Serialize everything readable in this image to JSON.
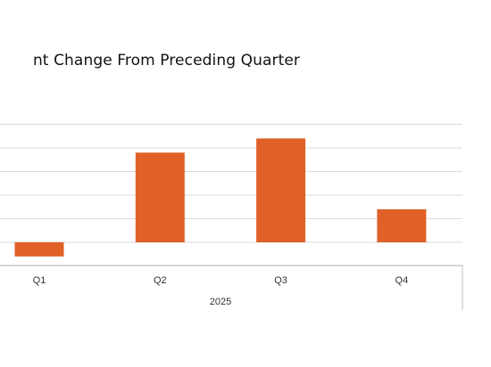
{
  "chart_data": {
    "type": "bar",
    "title": "nt Change From Preceding Quarter",
    "categories": [
      "Q1",
      "Q2",
      "Q3",
      "Q4"
    ],
    "category_group_label": "2025",
    "series": [
      {
        "values": [
          -0.6,
          3.8,
          4.4,
          1.4
        ]
      }
    ],
    "ylim": [
      -1,
      6
    ],
    "grid": true,
    "legend": "none",
    "bar_color": "#e06128",
    "grid_color": "#d9d9d9",
    "axis_color": "#bfbfbf",
    "text_color": "#333333"
  }
}
